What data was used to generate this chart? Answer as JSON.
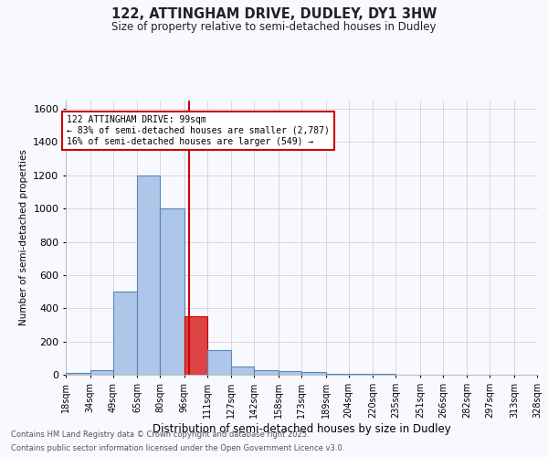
{
  "title_line1": "122, ATTINGHAM DRIVE, DUDLEY, DY1 3HW",
  "title_line2": "Size of property relative to semi-detached houses in Dudley",
  "xlabel": "Distribution of semi-detached houses by size in Dudley",
  "ylabel": "Number of semi-detached properties",
  "footer_line1": "Contains HM Land Registry data © Crown copyright and database right 2025.",
  "footer_line2": "Contains public sector information licensed under the Open Government Licence v3.0.",
  "annotation_line1": "122 ATTINGHAM DRIVE: 99sqm",
  "annotation_line2": "← 83% of semi-detached houses are smaller (2,787)",
  "annotation_line3": "16% of semi-detached houses are larger (549) →",
  "property_value": 99,
  "bin_edges": [
    18,
    34,
    49,
    65,
    80,
    96,
    111,
    127,
    142,
    158,
    173,
    189,
    204,
    220,
    235,
    251,
    266,
    282,
    297,
    313,
    328
  ],
  "bar_heights": [
    10,
    30,
    500,
    1200,
    1000,
    350,
    150,
    50,
    30,
    20,
    15,
    5,
    5,
    5,
    2,
    2,
    1,
    1,
    0,
    0
  ],
  "bar_color": "#aec6e8",
  "bar_edge_color": "#5588bb",
  "red_bar_color": "#dd4444",
  "red_bar_edge_color": "#cc0000",
  "red_line_color": "#cc0000",
  "annotation_box_edge": "#cc0000",
  "background_color": "#f8f8ff",
  "grid_color": "#cccccc",
  "ylim": [
    0,
    1650
  ],
  "yticks": [
    0,
    200,
    400,
    600,
    800,
    1000,
    1200,
    1400,
    1600
  ]
}
